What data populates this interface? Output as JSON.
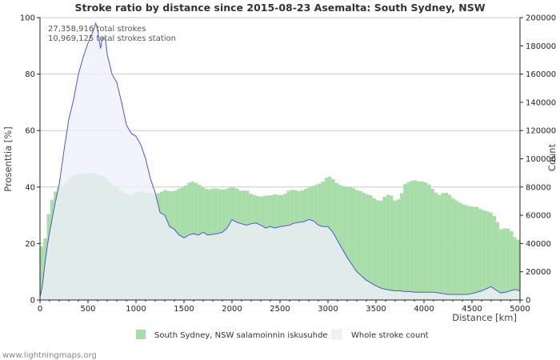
{
  "chart_data": {
    "type": "area",
    "title": "Stroke ratio by distance since 2015-08-23 Asemalta: South Sydney, NSW",
    "xlabel": "Distance   [km]",
    "ylabel_left": "Prosenttia   [%]",
    "ylabel_right": "Count",
    "xlim": [
      0,
      5000
    ],
    "ylim_left": [
      0,
      100
    ],
    "ylim_right": [
      0,
      200000
    ],
    "x_ticks": [
      0,
      500,
      1000,
      1500,
      2000,
      2500,
      3000,
      3500,
      4000,
      4500,
      5000
    ],
    "y_left_ticks": [
      0,
      20,
      40,
      60,
      80,
      100
    ],
    "y_right_ticks": [
      0,
      20000,
      40000,
      60000,
      80000,
      100000,
      120000,
      140000,
      160000,
      180000,
      200000
    ],
    "grid": true,
    "annotations": [
      "27,358,916 total strokes",
      "10,969,125 total strokes station"
    ],
    "series": [
      {
        "name": "South Sydney, NSW salamoinnin iskusuhde",
        "kind": "bar",
        "axis": "left",
        "color": "#a8dca8",
        "points": [
          [
            0,
            18
          ],
          [
            50,
            21
          ],
          [
            100,
            33
          ],
          [
            150,
            38
          ],
          [
            200,
            40
          ],
          [
            250,
            41
          ],
          [
            300,
            43
          ],
          [
            350,
            44
          ],
          [
            400,
            45
          ],
          [
            450,
            44.5
          ],
          [
            500,
            45
          ],
          [
            550,
            45
          ],
          [
            600,
            44.5
          ],
          [
            650,
            44
          ],
          [
            700,
            43
          ],
          [
            750,
            41
          ],
          [
            800,
            40
          ],
          [
            850,
            38.5
          ],
          [
            900,
            37.5
          ],
          [
            950,
            37
          ],
          [
            1000,
            38
          ],
          [
            1050,
            38.5
          ],
          [
            1100,
            38
          ],
          [
            1150,
            38
          ],
          [
            1200,
            37.5
          ],
          [
            1250,
            38
          ],
          [
            1300,
            39
          ],
          [
            1350,
            38.5
          ],
          [
            1400,
            38.5
          ],
          [
            1450,
            39.5
          ],
          [
            1500,
            40
          ],
          [
            1550,
            41.5
          ],
          [
            1600,
            42
          ],
          [
            1650,
            41
          ],
          [
            1700,
            40
          ],
          [
            1750,
            39
          ],
          [
            1800,
            39.5
          ],
          [
            1850,
            39.5
          ],
          [
            1900,
            39
          ],
          [
            1950,
            39.5
          ],
          [
            2000,
            40
          ],
          [
            2050,
            39.5
          ],
          [
            2100,
            38.5
          ],
          [
            2150,
            39
          ],
          [
            2200,
            37.5
          ],
          [
            2250,
            37
          ],
          [
            2300,
            36.5
          ],
          [
            2350,
            37
          ],
          [
            2400,
            37
          ],
          [
            2450,
            37.5
          ],
          [
            2500,
            37
          ],
          [
            2550,
            37.5
          ],
          [
            2600,
            39
          ],
          [
            2650,
            39
          ],
          [
            2700,
            38.5
          ],
          [
            2750,
            39
          ],
          [
            2800,
            40
          ],
          [
            2850,
            40.5
          ],
          [
            2900,
            41
          ],
          [
            2950,
            42
          ],
          [
            3000,
            44
          ],
          [
            3050,
            43
          ],
          [
            3100,
            41
          ],
          [
            3150,
            40.5
          ],
          [
            3200,
            40
          ],
          [
            3250,
            40
          ],
          [
            3300,
            39
          ],
          [
            3350,
            38.5
          ],
          [
            3400,
            37.5
          ],
          [
            3450,
            37
          ],
          [
            3500,
            35.5
          ],
          [
            3550,
            35
          ],
          [
            3600,
            37
          ],
          [
            3650,
            37.5
          ],
          [
            3700,
            35
          ],
          [
            3750,
            36
          ],
          [
            3800,
            41
          ],
          [
            3850,
            42
          ],
          [
            3900,
            42.5
          ],
          [
            3950,
            42
          ],
          [
            4000,
            42
          ],
          [
            4050,
            41
          ],
          [
            4100,
            39
          ],
          [
            4150,
            37
          ],
          [
            4200,
            38
          ],
          [
            4250,
            38
          ],
          [
            4300,
            36
          ],
          [
            4350,
            35
          ],
          [
            4400,
            34
          ],
          [
            4450,
            33.5
          ],
          [
            4500,
            33
          ],
          [
            4550,
            33
          ],
          [
            4600,
            32
          ],
          [
            4650,
            31.5
          ],
          [
            4700,
            31
          ],
          [
            4750,
            29
          ],
          [
            4800,
            25
          ],
          [
            4850,
            25.5
          ],
          [
            4900,
            25
          ],
          [
            4950,
            22
          ],
          [
            5000,
            21
          ]
        ]
      },
      {
        "name": "Whole stroke count",
        "kind": "area",
        "axis": "right",
        "color": "#f0f0fc",
        "line_color": "#4a5bc8",
        "points": [
          [
            0,
            2000
          ],
          [
            25,
            10000
          ],
          [
            50,
            25000
          ],
          [
            75,
            38000
          ],
          [
            100,
            48000
          ],
          [
            150,
            66000
          ],
          [
            200,
            82000
          ],
          [
            250,
            106000
          ],
          [
            300,
            128000
          ],
          [
            350,
            142000
          ],
          [
            400,
            160000
          ],
          [
            450,
            172000
          ],
          [
            500,
            182000
          ],
          [
            550,
            190000
          ],
          [
            580,
            196000
          ],
          [
            600,
            192000
          ],
          [
            630,
            178000
          ],
          [
            650,
            186000
          ],
          [
            680,
            185000
          ],
          [
            700,
            174000
          ],
          [
            750,
            160000
          ],
          [
            800,
            154000
          ],
          [
            850,
            140000
          ],
          [
            900,
            124000
          ],
          [
            950,
            118000
          ],
          [
            1000,
            116000
          ],
          [
            1050,
            110000
          ],
          [
            1100,
            100000
          ],
          [
            1150,
            86000
          ],
          [
            1200,
            76000
          ],
          [
            1250,
            62000
          ],
          [
            1300,
            60000
          ],
          [
            1350,
            52000
          ],
          [
            1400,
            50000
          ],
          [
            1450,
            46000
          ],
          [
            1500,
            44000
          ],
          [
            1550,
            46000
          ],
          [
            1600,
            47000
          ],
          [
            1650,
            46000
          ],
          [
            1700,
            48000
          ],
          [
            1750,
            46000
          ],
          [
            1800,
            46500
          ],
          [
            1850,
            47000
          ],
          [
            1900,
            48000
          ],
          [
            1950,
            51000
          ],
          [
            2000,
            57000
          ],
          [
            2050,
            55000
          ],
          [
            2100,
            54000
          ],
          [
            2150,
            53000
          ],
          [
            2200,
            54000
          ],
          [
            2250,
            54500
          ],
          [
            2300,
            53000
          ],
          [
            2350,
            51000
          ],
          [
            2400,
            52000
          ],
          [
            2450,
            51000
          ],
          [
            2500,
            52000
          ],
          [
            2550,
            52500
          ],
          [
            2600,
            53000
          ],
          [
            2650,
            54500
          ],
          [
            2700,
            55000
          ],
          [
            2750,
            55500
          ],
          [
            2800,
            57000
          ],
          [
            2850,
            56000
          ],
          [
            2900,
            53000
          ],
          [
            2950,
            52000
          ],
          [
            3000,
            52000
          ],
          [
            3050,
            48000
          ],
          [
            3100,
            42000
          ],
          [
            3150,
            36000
          ],
          [
            3200,
            30000
          ],
          [
            3250,
            25000
          ],
          [
            3300,
            20000
          ],
          [
            3350,
            17000
          ],
          [
            3400,
            14000
          ],
          [
            3450,
            12000
          ],
          [
            3500,
            10000
          ],
          [
            3550,
            8500
          ],
          [
            3600,
            7500
          ],
          [
            3650,
            7000
          ],
          [
            3700,
            6500
          ],
          [
            3750,
            6500
          ],
          [
            3800,
            6000
          ],
          [
            3850,
            6000
          ],
          [
            3900,
            5500
          ],
          [
            3950,
            5500
          ],
          [
            4000,
            5500
          ],
          [
            4050,
            5500
          ],
          [
            4100,
            5500
          ],
          [
            4150,
            5000
          ],
          [
            4200,
            4500
          ],
          [
            4250,
            4000
          ],
          [
            4300,
            4000
          ],
          [
            4350,
            4000
          ],
          [
            4400,
            4000
          ],
          [
            4450,
            4000
          ],
          [
            4500,
            4500
          ],
          [
            4550,
            5500
          ],
          [
            4600,
            6500
          ],
          [
            4650,
            8000
          ],
          [
            4700,
            9500
          ],
          [
            4750,
            7000
          ],
          [
            4800,
            5000
          ],
          [
            4850,
            5500
          ],
          [
            4900,
            6500
          ],
          [
            4950,
            7500
          ],
          [
            5000,
            6500
          ]
        ]
      }
    ],
    "legend": [
      "South Sydney, NSW salamoinnin iskusuhde",
      "Whole stroke count"
    ],
    "legend_position": "bottom"
  },
  "footer": "www.lightningmaps.org"
}
